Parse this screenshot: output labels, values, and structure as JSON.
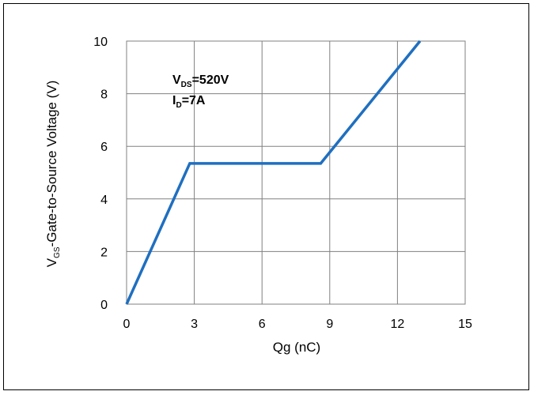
{
  "chart_data": {
    "type": "line",
    "xlabel": "Qg (nC)",
    "ylabel_main": "V",
    "ylabel_sub": "GS",
    "ylabel_rest": "-Gate-to-Source Voltage (V)",
    "xlim": [
      0,
      15
    ],
    "ylim": [
      0,
      10
    ],
    "xticks": [
      0,
      3,
      6,
      9,
      12,
      15
    ],
    "yticks": [
      0,
      2,
      4,
      6,
      8,
      10
    ],
    "grid": true,
    "annotations": [
      {
        "main": "V",
        "sub": "DS",
        "rest": "=520V"
      },
      {
        "main": "I",
        "sub": "D",
        "rest": "=7A"
      }
    ],
    "series": [
      {
        "color": "#1f6fc0",
        "x": [
          0,
          2.8,
          8.6,
          13.0
        ],
        "y": [
          0,
          5.35,
          5.35,
          10.0
        ]
      }
    ]
  }
}
